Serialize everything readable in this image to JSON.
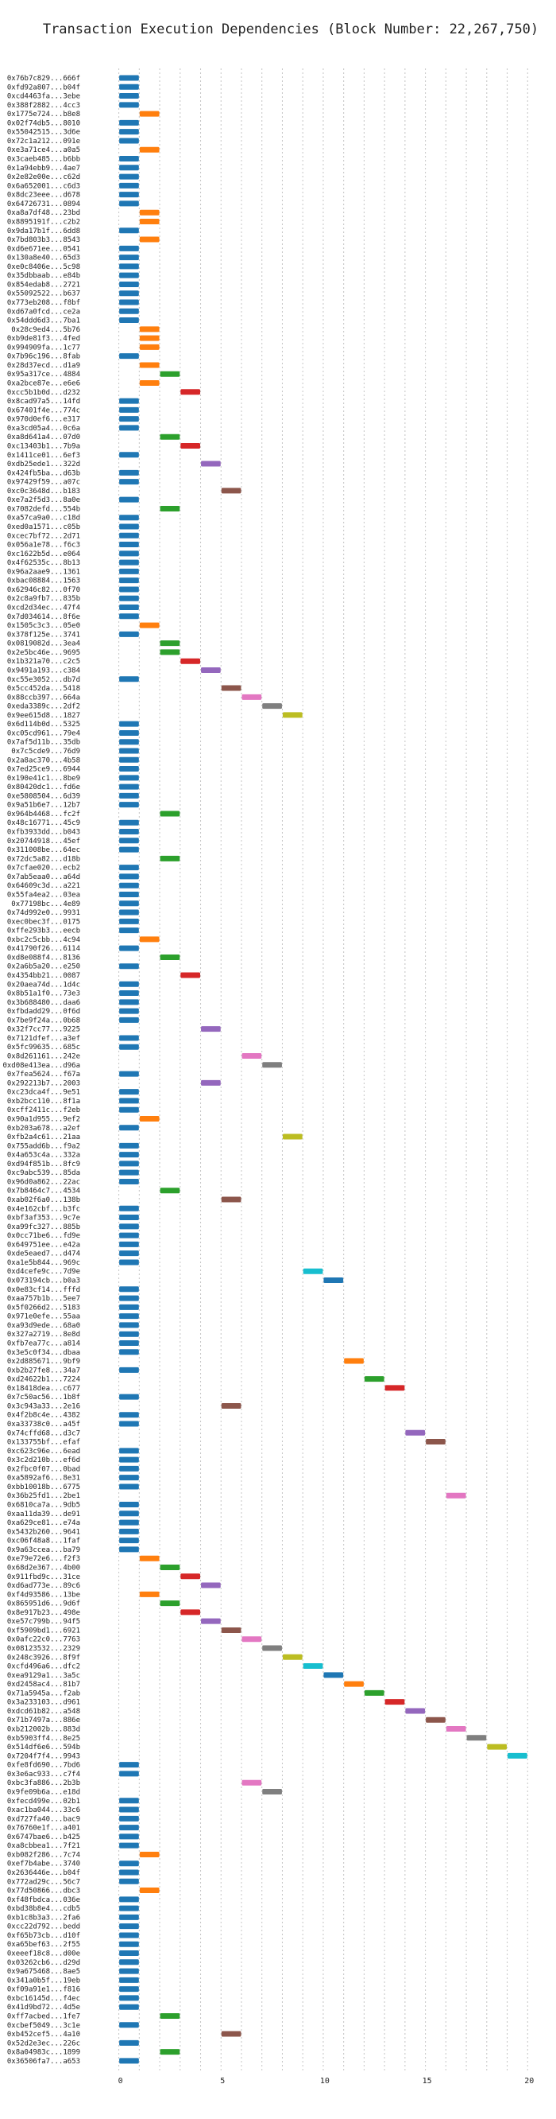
{
  "chart_data": {
    "type": "gantt",
    "title": "Transaction Execution Dependencies (Block Number: 22,267,750)",
    "xlabel": "",
    "ylabel": "",
    "xlim": [
      -1.5,
      21
    ],
    "x_ticks": [
      0,
      5,
      10,
      15,
      20
    ],
    "grid": "vertical dotted",
    "legend": "none",
    "palette": [
      "#1f77b4",
      "#ff7f0e",
      "#2ca02c",
      "#d62728",
      "#9467bd",
      "#8c564b",
      "#e377c2",
      "#7f7f7f",
      "#bcbd22",
      "#17becf"
    ],
    "bar_length": 1,
    "transactions": [
      {
        "hash": "0x76b7c829...666f",
        "start": 0
      },
      {
        "hash": "0xfd92a807...b04f",
        "start": 0
      },
      {
        "hash": "0xcd4463fa...3ebe",
        "start": 0
      },
      {
        "hash": "0x388f2882...4cc3",
        "start": 0
      },
      {
        "hash": "0x1775e724...b8e8",
        "start": 1
      },
      {
        "hash": "0x02f74db5...8010",
        "start": 0
      },
      {
        "hash": "0x55042515...3d6e",
        "start": 0
      },
      {
        "hash": "0x72c1a212...091e",
        "start": 0
      },
      {
        "hash": "0xe3a71ce4...a0a5",
        "start": 1
      },
      {
        "hash": "0x3caeb485...b6bb",
        "start": 0
      },
      {
        "hash": "0x1a94ebb9...4ae7",
        "start": 0
      },
      {
        "hash": "0x2e82e00e...c62d",
        "start": 0
      },
      {
        "hash": "0x6a652001...c6d3",
        "start": 0
      },
      {
        "hash": "0x8dc23eee...d678",
        "start": 0
      },
      {
        "hash": "0x64726731...0894",
        "start": 0
      },
      {
        "hash": "0xa8a7df48...23bd",
        "start": 1
      },
      {
        "hash": "0x8895191f...c2b2",
        "start": 1
      },
      {
        "hash": "0x9da17b1f...6dd8",
        "start": 0
      },
      {
        "hash": "0x7bd803b3...8543",
        "start": 1
      },
      {
        "hash": "0xd6e671ee...0541",
        "start": 0
      },
      {
        "hash": "0x130a8e40...65d3",
        "start": 0
      },
      {
        "hash": "0xe0c8406e...5c98",
        "start": 0
      },
      {
        "hash": "0x35dbbaab...e84b",
        "start": 0
      },
      {
        "hash": "0x854edab8...2721",
        "start": 0
      },
      {
        "hash": "0x55092522...b637",
        "start": 0
      },
      {
        "hash": "0x773eb208...f8bf",
        "start": 0
      },
      {
        "hash": "0xd67a0fcd...ce2a",
        "start": 0
      },
      {
        "hash": "0x54ddd6d3...7ba1",
        "start": 0
      },
      {
        "hash": "0x28c9ed4...5b76",
        "start": 1
      },
      {
        "hash": "0xb9de81f3...4fed",
        "start": 1
      },
      {
        "hash": "0x994909fa...1c77",
        "start": 1
      },
      {
        "hash": "0x7b96c196...8fab",
        "start": 0
      },
      {
        "hash": "0x28d37ecd...d1a9",
        "start": 1
      },
      {
        "hash": "0x95a317ce...4884",
        "start": 2
      },
      {
        "hash": "0xa2bce87e...e6e6",
        "start": 1
      },
      {
        "hash": "0xcc5b1b0d...d232",
        "start": 3
      },
      {
        "hash": "0x8cad97a5...14fd",
        "start": 0
      },
      {
        "hash": "0x67401f4e...774c",
        "start": 0
      },
      {
        "hash": "0x970d0ef6...e317",
        "start": 0
      },
      {
        "hash": "0xa3cd05a4...0c6a",
        "start": 0
      },
      {
        "hash": "0xa8d641a4...07d0",
        "start": 2
      },
      {
        "hash": "0xc13403b1...7b9a",
        "start": 3
      },
      {
        "hash": "0x1411ce01...6ef3",
        "start": 0
      },
      {
        "hash": "0xdb25ede1...322d",
        "start": 4
      },
      {
        "hash": "0x424fb5ba...d63b",
        "start": 0
      },
      {
        "hash": "0x97429f59...a07c",
        "start": 0
      },
      {
        "hash": "0xc0c3648d...b183",
        "start": 5
      },
      {
        "hash": "0xe7a2f5d3...8a0e",
        "start": 0
      },
      {
        "hash": "0x7082defd...554b",
        "start": 2
      },
      {
        "hash": "0xa57ca9a0...c18d",
        "start": 0
      },
      {
        "hash": "0xed0a1571...c05b",
        "start": 0
      },
      {
        "hash": "0xcec7bf72...2d71",
        "start": 0
      },
      {
        "hash": "0x056a1e78...f6c3",
        "start": 0
      },
      {
        "hash": "0xc1622b5d...e064",
        "start": 0
      },
      {
        "hash": "0x4f62535c...8b13",
        "start": 0
      },
      {
        "hash": "0x96a2aae9...1361",
        "start": 0
      },
      {
        "hash": "0xbac08884...1563",
        "start": 0
      },
      {
        "hash": "0x62946c82...0f70",
        "start": 0
      },
      {
        "hash": "0x2c8a9fb7...835b",
        "start": 0
      },
      {
        "hash": "0xcd2d34ec...47f4",
        "start": 0
      },
      {
        "hash": "0x7d034614...8f6e",
        "start": 0
      },
      {
        "hash": "0x1505c3c3...05e0",
        "start": 1
      },
      {
        "hash": "0x378f125e...3741",
        "start": 0
      },
      {
        "hash": "0x0819082d...3ea4",
        "start": 2
      },
      {
        "hash": "0x2e5bc46e...9695",
        "start": 2
      },
      {
        "hash": "0x1b321a70...c2c5",
        "start": 3
      },
      {
        "hash": "0x9491a193...c384",
        "start": 4
      },
      {
        "hash": "0xc55e3052...db7d",
        "start": 0
      },
      {
        "hash": "0x5cc452da...5418",
        "start": 5
      },
      {
        "hash": "0x88ccb397...664a",
        "start": 6
      },
      {
        "hash": "0xeda3389c...2df2",
        "start": 7
      },
      {
        "hash": "0x9ee615d8...1827",
        "start": 8
      },
      {
        "hash": "0x6d114b0d...5325",
        "start": 0
      },
      {
        "hash": "0xc05cd961...79e4",
        "start": 0
      },
      {
        "hash": "0x7af5d11b...35db",
        "start": 0
      },
      {
        "hash": "0x7c5cde9...76d9",
        "start": 0
      },
      {
        "hash": "0x2a8ac370...4b58",
        "start": 0
      },
      {
        "hash": "0x7ed25ce9...6944",
        "start": 0
      },
      {
        "hash": "0x190e41c1...8be9",
        "start": 0
      },
      {
        "hash": "0x80420dc1...fd6e",
        "start": 0
      },
      {
        "hash": "0xe5808504...6d39",
        "start": 0
      },
      {
        "hash": "0x9a51b6e7...12b7",
        "start": 0
      },
      {
        "hash": "0x964b4468...fc2f",
        "start": 2
      },
      {
        "hash": "0x48c16771...45c9",
        "start": 0
      },
      {
        "hash": "0xfb3933dd...b043",
        "start": 0
      },
      {
        "hash": "0x20744918...45ef",
        "start": 0
      },
      {
        "hash": "0x311008be...64ec",
        "start": 0
      },
      {
        "hash": "0x72dc5a82...d18b",
        "start": 2
      },
      {
        "hash": "0x7cfae020...ecb2",
        "start": 0
      },
      {
        "hash": "0x7ab5eaa0...a64d",
        "start": 0
      },
      {
        "hash": "0x64609c3d...a221",
        "start": 0
      },
      {
        "hash": "0x55fa4ea2...03ea",
        "start": 0
      },
      {
        "hash": "0x77198bc...4e89",
        "start": 0
      },
      {
        "hash": "0x74d992e0...9931",
        "start": 0
      },
      {
        "hash": "0xec0bec3f...0175",
        "start": 0
      },
      {
        "hash": "0xffe293b3...eecb",
        "start": 0
      },
      {
        "hash": "0xbc2c5cbb...4c94",
        "start": 1
      },
      {
        "hash": "0x41790f26...6114",
        "start": 0
      },
      {
        "hash": "0xd8e088f4...8136",
        "start": 2
      },
      {
        "hash": "0x2a6b5a20...e250",
        "start": 0
      },
      {
        "hash": "0x4354bb21...0087",
        "start": 3
      },
      {
        "hash": "0x20aea74d...1d4c",
        "start": 0
      },
      {
        "hash": "0x8b51a1f0...73e3",
        "start": 0
      },
      {
        "hash": "0x3b688480...daa6",
        "start": 0
      },
      {
        "hash": "0xfbdadd29...0f6d",
        "start": 0
      },
      {
        "hash": "0x7be9f24a...0b68",
        "start": 0
      },
      {
        "hash": "0x32f7cc77...9225",
        "start": 4
      },
      {
        "hash": "0x7121dfef...a3ef",
        "start": 0
      },
      {
        "hash": "0x5fc99635...685c",
        "start": 0
      },
      {
        "hash": "0x8d261161...242e",
        "start": 6
      },
      {
        "hash": "0xd08e413ea...d96a",
        "start": 7
      },
      {
        "hash": "0x7fea5624...f67a",
        "start": 0
      },
      {
        "hash": "0x292213b7...2003",
        "start": 4
      },
      {
        "hash": "0xc23dca4f...9e51",
        "start": 0
      },
      {
        "hash": "0xb2bcc110...8f1a",
        "start": 0
      },
      {
        "hash": "0xcff2411c...f2eb",
        "start": 0
      },
      {
        "hash": "0x90a1d955...9ef2",
        "start": 1
      },
      {
        "hash": "0xb203a678...a2ef",
        "start": 0
      },
      {
        "hash": "0xfb2a4c61...21aa",
        "start": 8
      },
      {
        "hash": "0x755add6b...f9a2",
        "start": 0
      },
      {
        "hash": "0x4a653c4a...332a",
        "start": 0
      },
      {
        "hash": "0xd94f851b...8fc9",
        "start": 0
      },
      {
        "hash": "0xc9abc539...85da",
        "start": 0
      },
      {
        "hash": "0x96d0a862...22ac",
        "start": 0
      },
      {
        "hash": "0x7b8464c7...4534",
        "start": 2
      },
      {
        "hash": "0xab02f6a0...138b",
        "start": 5
      },
      {
        "hash": "0x4e162cbf...b3fc",
        "start": 0
      },
      {
        "hash": "0xbf3af353...9c7e",
        "start": 0
      },
      {
        "hash": "0xa99fc327...885b",
        "start": 0
      },
      {
        "hash": "0x0cc71be6...fd9e",
        "start": 0
      },
      {
        "hash": "0x649751ee...e42a",
        "start": 0
      },
      {
        "hash": "0xde5eaed7...d474",
        "start": 0
      },
      {
        "hash": "0xa1e5b844...969c",
        "start": 0
      },
      {
        "hash": "0xd4cefe9c...7d9e",
        "start": 9
      },
      {
        "hash": "0x073194cb...b0a3",
        "start": 10
      },
      {
        "hash": "0x0e83cf14...fffd",
        "start": 0
      },
      {
        "hash": "0xaa757b1b...5ee7",
        "start": 0
      },
      {
        "hash": "0x5f0266d2...5183",
        "start": 0
      },
      {
        "hash": "0x971e0efe...55aa",
        "start": 0
      },
      {
        "hash": "0xa93d9ede...68a0",
        "start": 0
      },
      {
        "hash": "0x327a2719...8e8d",
        "start": 0
      },
      {
        "hash": "0xfb7ea77c...a814",
        "start": 0
      },
      {
        "hash": "0x3e5c0f34...dbaa",
        "start": 0
      },
      {
        "hash": "0x2d885671...9bf9",
        "start": 11
      },
      {
        "hash": "0xb2b27fe8...34a7",
        "start": 0
      },
      {
        "hash": "0xd24622b1...7224",
        "start": 12
      },
      {
        "hash": "0x18418dea...c677",
        "start": 13
      },
      {
        "hash": "0x7c50ac56...1b8f",
        "start": 0
      },
      {
        "hash": "0x3c943a33...2e16",
        "start": 5
      },
      {
        "hash": "0x4f2b8c4e...4382",
        "start": 0
      },
      {
        "hash": "0xa33738c0...a45f",
        "start": 0
      },
      {
        "hash": "0x74cffd68...d3c7",
        "start": 14
      },
      {
        "hash": "0x133755bf...efaf",
        "start": 15
      },
      {
        "hash": "0xc623c96e...6ead",
        "start": 0
      },
      {
        "hash": "0x3c2d210b...ef6d",
        "start": 0
      },
      {
        "hash": "0x2fbc0f07...0bad",
        "start": 0
      },
      {
        "hash": "0xa5892af6...8e31",
        "start": 0
      },
      {
        "hash": "0xbb10018b...6775",
        "start": 0
      },
      {
        "hash": "0x36b25fd1...2be1",
        "start": 16
      },
      {
        "hash": "0x6810ca7a...9db5",
        "start": 0
      },
      {
        "hash": "0xaa11da39...de91",
        "start": 0
      },
      {
        "hash": "0xa629ce81...e74a",
        "start": 0
      },
      {
        "hash": "0x5432b260...9641",
        "start": 0
      },
      {
        "hash": "0xc06f48a8...1faf",
        "start": 0
      },
      {
        "hash": "0x9a63ccea...ba79",
        "start": 0
      },
      {
        "hash": "0xe79e72e6...f2f3",
        "start": 1
      },
      {
        "hash": "0x68d2e367...4b00",
        "start": 2
      },
      {
        "hash": "0x911fbd9c...31ce",
        "start": 3
      },
      {
        "hash": "0xd6ad773e...89c6",
        "start": 4
      },
      {
        "hash": "0xf4d93586...13be",
        "start": 1
      },
      {
        "hash": "0x865951d6...9d6f",
        "start": 2
      },
      {
        "hash": "0x8e917b23...498e",
        "start": 3
      },
      {
        "hash": "0xe57c799b...94f5",
        "start": 4
      },
      {
        "hash": "0xf5909bd1...6921",
        "start": 5
      },
      {
        "hash": "0x0afc22c0...7763",
        "start": 6
      },
      {
        "hash": "0x08123532...2329",
        "start": 7
      },
      {
        "hash": "0x248c3926...8f9f",
        "start": 8
      },
      {
        "hash": "0xcfd496a6...dfc2",
        "start": 9
      },
      {
        "hash": "0xea9129a1...3a5c",
        "start": 10
      },
      {
        "hash": "0xd2458ac4...81b7",
        "start": 11
      },
      {
        "hash": "0x71a5945a...f2ab",
        "start": 12
      },
      {
        "hash": "0x3a233103...d961",
        "start": 13
      },
      {
        "hash": "0xdcd61b82...a548",
        "start": 14
      },
      {
        "hash": "0x71b7497a...886e",
        "start": 15
      },
      {
        "hash": "0xb212002b...883d",
        "start": 16
      },
      {
        "hash": "0xb5903ff4...8e25",
        "start": 17
      },
      {
        "hash": "0x514df6e6...594b",
        "start": 18
      },
      {
        "hash": "0x7204f7f4...9943",
        "start": 19
      },
      {
        "hash": "0xfe8fd690...7bd6",
        "start": 0
      },
      {
        "hash": "0x3e6ac933...c7f4",
        "start": 0
      },
      {
        "hash": "0xbc3fa886...2b3b",
        "start": 6
      },
      {
        "hash": "0x9fe09b6a...e18d",
        "start": 7
      },
      {
        "hash": "0xfecd499e...02b1",
        "start": 0
      },
      {
        "hash": "0xac1ba044...33c6",
        "start": 0
      },
      {
        "hash": "0xd727fa40...bac9",
        "start": 0
      },
      {
        "hash": "0x76760e1f...a401",
        "start": 0
      },
      {
        "hash": "0x6747bae6...b425",
        "start": 0
      },
      {
        "hash": "0xa8cbbea1...7f21",
        "start": 0
      },
      {
        "hash": "0xb082f286...7c74",
        "start": 1
      },
      {
        "hash": "0xef7b4abe...3740",
        "start": 0
      },
      {
        "hash": "0x2636446e...b04f",
        "start": 0
      },
      {
        "hash": "0x772ad29c...56c7",
        "start": 0
      },
      {
        "hash": "0x77d50866...dbc3",
        "start": 1
      },
      {
        "hash": "0xf48fbdca...036e",
        "start": 0
      },
      {
        "hash": "0xbd38b8e4...cdb5",
        "start": 0
      },
      {
        "hash": "0xb1c8b3a3...2fa6",
        "start": 0
      },
      {
        "hash": "0xcc22d792...bedd",
        "start": 0
      },
      {
        "hash": "0xf65b73cb...d10f",
        "start": 0
      },
      {
        "hash": "0xa65bef63...2f55",
        "start": 0
      },
      {
        "hash": "0xeeef18c8...d00e",
        "start": 0
      },
      {
        "hash": "0x03262cb6...d29d",
        "start": 0
      },
      {
        "hash": "0x9a675468...8ae5",
        "start": 0
      },
      {
        "hash": "0x341a0b5f...19eb",
        "start": 0
      },
      {
        "hash": "0xf09a91e1...f816",
        "start": 0
      },
      {
        "hash": "0xbc16145d...f4ec",
        "start": 0
      },
      {
        "hash": "0x41d9bd72...4d5e",
        "start": 0
      },
      {
        "hash": "0xff7acbed...1fe7",
        "start": 2
      },
      {
        "hash": "0xcbef5049...3c1e",
        "start": 0
      },
      {
        "hash": "0xb452cef5...4a10",
        "start": 5
      },
      {
        "hash": "0x52d2e3ec...226c",
        "start": 0
      },
      {
        "hash": "0x8a04983c...1899",
        "start": 2
      },
      {
        "hash": "0x36506fa7...a653",
        "start": 0
      }
    ]
  }
}
